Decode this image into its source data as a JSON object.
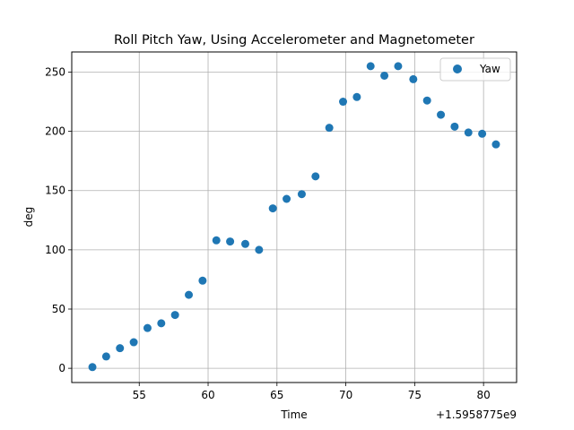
{
  "chart_data": {
    "type": "scatter",
    "title": "Roll Pitch Yaw, Using Accelerometer and Magnetometer",
    "xlabel": "Time",
    "ylabel": "deg",
    "x_offset_label": "+1.5958775e9",
    "x_tick_labels": [
      "55",
      "60",
      "65",
      "70",
      "75",
      "80"
    ],
    "y_tick_labels": [
      "0",
      "50",
      "100",
      "150",
      "200",
      "250"
    ],
    "xlim": [
      50.1,
      82.4
    ],
    "ylim": [
      -12,
      267
    ],
    "grid": true,
    "legend_position": "top-right",
    "series": [
      {
        "name": "Yaw",
        "color": "#1f77b4",
        "x": [
          51.6,
          52.6,
          53.6,
          54.6,
          55.6,
          56.6,
          57.6,
          58.6,
          59.6,
          60.6,
          61.6,
          62.7,
          63.7,
          64.7,
          65.7,
          66.8,
          67.8,
          68.8,
          69.8,
          70.8,
          71.8,
          72.8,
          73.8,
          74.9,
          75.9,
          76.9,
          77.9,
          78.9,
          79.9,
          80.9
        ],
        "y": [
          1,
          10,
          17,
          22,
          34,
          38,
          45,
          62,
          74,
          108,
          107,
          105,
          100,
          135,
          143,
          147,
          162,
          203,
          225,
          229,
          255,
          247,
          255,
          244,
          226,
          214,
          204,
          199,
          198,
          189
        ]
      }
    ]
  }
}
